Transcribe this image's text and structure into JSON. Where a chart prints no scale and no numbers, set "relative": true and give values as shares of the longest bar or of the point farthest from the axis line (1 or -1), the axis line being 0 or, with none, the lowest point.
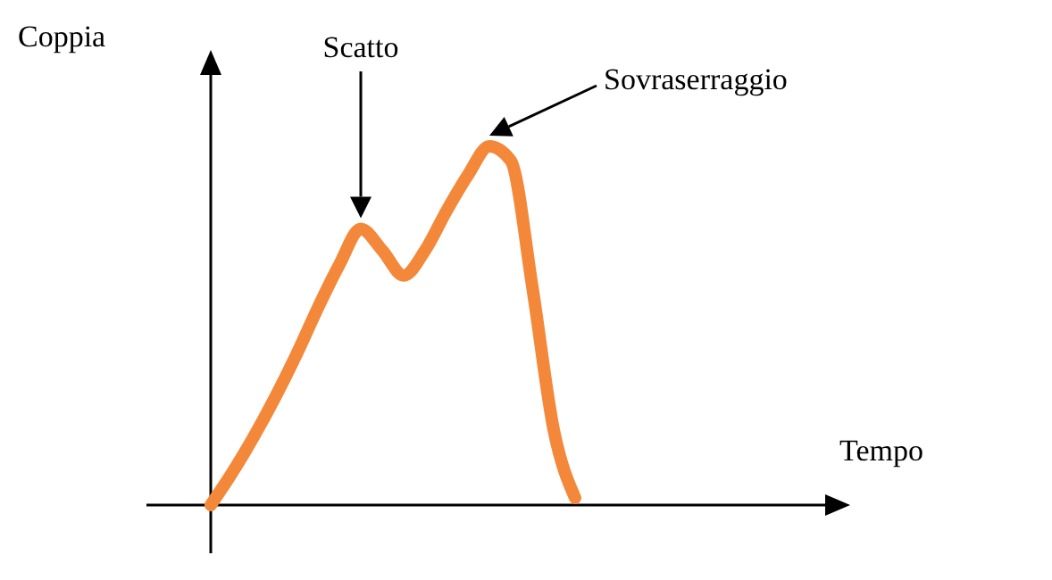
{
  "chart_data": {
    "type": "line",
    "relative": true,
    "xlabel": "Tempo",
    "ylabel": "Coppia",
    "categories": [
      null,
      null,
      null,
      null,
      null,
      null,
      null,
      null,
      null,
      null,
      null,
      null,
      null,
      null,
      null,
      null,
      null,
      null,
      null,
      null,
      null,
      null,
      null,
      null,
      null,
      null,
      null,
      null,
      null,
      null
    ],
    "values": [
      0,
      0.09,
      0.19,
      0.3,
      0.42,
      0.55,
      0.67,
      0.77,
      0.71,
      0.64,
      0.71,
      0.82,
      0.92,
      1,
      0.96,
      0.61,
      0.21,
      0.02,
      null,
      null,
      null,
      null,
      null,
      null,
      null,
      null,
      null,
      null,
      null,
      null
    ],
    "color": "#f4883a",
    "annotations": [
      "Scatto",
      "Sovraserraggio"
    ]
  }
}
